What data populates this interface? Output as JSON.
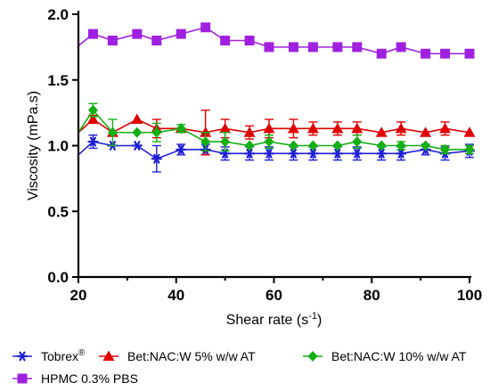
{
  "chart_data": {
    "type": "line",
    "xlabel": "Shear rate (s",
    "xlabel_superscript": "-1",
    "xlabel_suffix": ")",
    "ylabel": "Viscosity (mPa.s)",
    "xlim": [
      20,
      100
    ],
    "ylim": [
      0.0,
      2.0
    ],
    "xticks": [
      "20",
      "40",
      "60",
      "80",
      "100"
    ],
    "yticks": [
      "0.0",
      "0.5",
      "1.0",
      "1.5",
      "2.0"
    ],
    "legend_position": "bottom",
    "series": [
      {
        "name": "Tobrex",
        "name_superscript": "®",
        "color": "#1f1fd6",
        "marker": "star",
        "x": [
          20,
          23,
          27,
          32,
          36,
          41,
          46,
          50,
          55,
          59,
          64,
          68,
          73,
          77,
          82,
          86,
          91,
          95,
          100
        ],
        "y": [
          0.93,
          1.03,
          1.0,
          1.0,
          0.9,
          0.97,
          0.97,
          0.94,
          0.94,
          0.94,
          0.94,
          0.94,
          0.94,
          0.94,
          0.94,
          0.94,
          0.97,
          0.94,
          0.96
        ],
        "err": [
          0,
          0.05,
          0,
          0,
          0.1,
          0.04,
          0.04,
          0.05,
          0.05,
          0.05,
          0.05,
          0.05,
          0.05,
          0.05,
          0.05,
          0.05,
          0.04,
          0.05,
          0.05
        ]
      },
      {
        "name": "Bet:NAC:W 5% w/w AT",
        "color": "#e00000",
        "marker": "triangle",
        "x": [
          20,
          23,
          27,
          32,
          36,
          41,
          46,
          50,
          55,
          59,
          64,
          68,
          73,
          77,
          82,
          86,
          91,
          95,
          100
        ],
        "y": [
          1.1,
          1.2,
          1.1,
          1.2,
          1.13,
          1.13,
          1.1,
          1.13,
          1.1,
          1.13,
          1.13,
          1.13,
          1.13,
          1.13,
          1.1,
          1.13,
          1.1,
          1.13,
          1.1
        ],
        "err": [
          0,
          0.03,
          0,
          0,
          0.07,
          0,
          0.17,
          0.07,
          0.05,
          0.07,
          0.07,
          0.05,
          0.05,
          0.05,
          0,
          0.05,
          0,
          0.05,
          0
        ]
      },
      {
        "name": "Bet:NAC:W 10% w/w AT",
        "color": "#12b012",
        "marker": "diamond",
        "x": [
          20,
          23,
          27,
          32,
          36,
          41,
          46,
          50,
          55,
          59,
          64,
          68,
          73,
          77,
          82,
          86,
          91,
          95,
          100
        ],
        "y": [
          1.1,
          1.27,
          1.1,
          1.1,
          1.1,
          1.13,
          1.03,
          1.03,
          1.0,
          1.03,
          1.0,
          1.0,
          1.0,
          1.03,
          1.0,
          1.0,
          1.0,
          0.97,
          0.97
        ],
        "err": [
          0,
          0.05,
          0.1,
          0,
          0.07,
          0.03,
          0.07,
          0.07,
          0,
          0.05,
          0,
          0,
          0,
          0.05,
          0,
          0.03,
          0,
          0.03,
          0.03
        ]
      },
      {
        "name": "HPMC 0.3% PBS",
        "color": "#a020e0",
        "marker": "square",
        "x": [
          20,
          23,
          27,
          32,
          36,
          41,
          46,
          50,
          55,
          59,
          64,
          68,
          73,
          77,
          82,
          86,
          91,
          95,
          100
        ],
        "y": [
          1.76,
          1.85,
          1.8,
          1.85,
          1.8,
          1.85,
          1.9,
          1.8,
          1.8,
          1.75,
          1.75,
          1.75,
          1.75,
          1.75,
          1.7,
          1.75,
          1.7,
          1.7,
          1.7
        ],
        "err": [
          0,
          0,
          0,
          0,
          0,
          0,
          0,
          0,
          0,
          0,
          0,
          0,
          0,
          0,
          0,
          0,
          0,
          0,
          0
        ]
      }
    ]
  }
}
